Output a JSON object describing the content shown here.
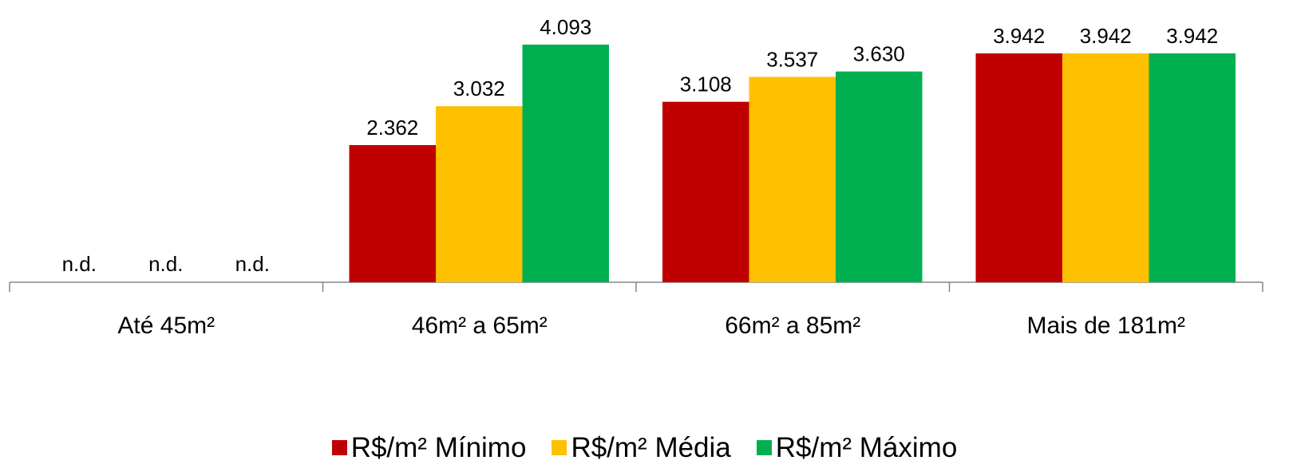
{
  "chart_data": {
    "type": "bar",
    "categories": [
      "Até 45m²",
      "46m² a 65m²",
      "66m² a 85m²",
      "Mais de 181m²"
    ],
    "series": [
      {
        "name": "R$/m² Mínimo",
        "color": "#C00000",
        "values": [
          null,
          2362,
          3108,
          3942
        ],
        "labels": [
          "n.d.",
          "2.362",
          "3.108",
          "3.942"
        ]
      },
      {
        "name": "R$/m² Média",
        "color": "#FFC000",
        "values": [
          null,
          3032,
          3537,
          3942
        ],
        "labels": [
          "n.d.",
          "3.032",
          "3.537",
          "3.942"
        ]
      },
      {
        "name": "R$/m² Máximo",
        "color": "#00B050",
        "values": [
          null,
          4093,
          3630,
          3942
        ],
        "labels": [
          "n.d.",
          "4.093",
          "3.630",
          "3.942"
        ]
      }
    ],
    "ylim": [
      0,
      4400
    ],
    "grid": false,
    "legend_position": "bottom"
  }
}
